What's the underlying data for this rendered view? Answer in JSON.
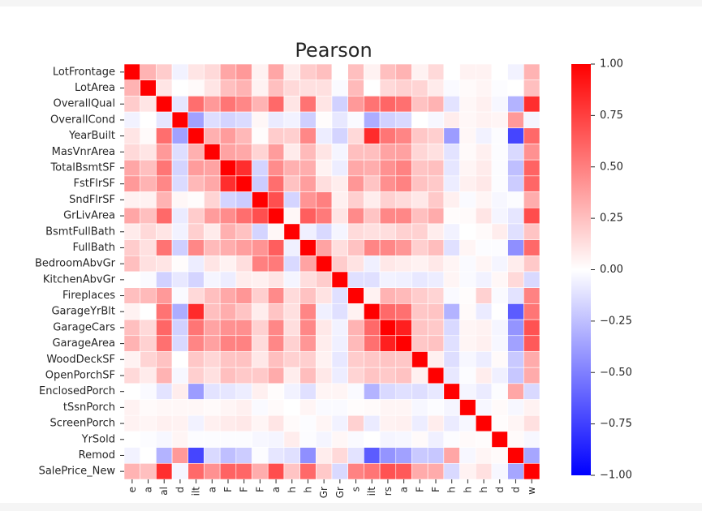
{
  "chart_data": {
    "type": "heatmap",
    "title": "Pearson",
    "labels": [
      "LotFrontage",
      "LotArea",
      "OverallQual",
      "OverallCond",
      "YearBuilt",
      "MasVnrArea",
      "TotalBsmtSF",
      "FstFlrSF",
      "SndFlrSF",
      "GrLivArea",
      "BsmtFullBath",
      "FullBath",
      "BedroomAbvGr",
      "KitchenAbvGr",
      "Fireplaces",
      "GarageYrBlt",
      "GarageCars",
      "GarageArea",
      "WoodDeckSF",
      "OpenPorchSF",
      "EnclosedPorch",
      "tSsnPorch",
      "ScreenPorch",
      "YrSold",
      "Remod",
      "SalePrice_New"
    ],
    "y_tick_labels": [
      "LotFrontage",
      "LotArea",
      "OverallQual",
      "OverallCond",
      "YearBuilt",
      "MasVnrArea",
      "TotalBsmtSF",
      "FstFlrSF",
      "SndFlrSF",
      "GrLivArea",
      "BsmtFullBath",
      "FullBath",
      "BedroomAbvGr",
      "KitchenAbvGr",
      "Fireplaces",
      "GarageYrBlt",
      "GarageCars",
      "GarageArea",
      "WoodDeckSF",
      "OpenPorchSF",
      "EnclosedPorch",
      "tSsnPorch",
      "ScreenPorch",
      "YrSold",
      "Remod",
      "SalePrice_New"
    ],
    "x_tick_labels_visible": [
      "e",
      "a",
      "al",
      "d",
      "ilt",
      "a",
      "F",
      "F",
      "F",
      "a",
      "h",
      "h",
      "Gr",
      "Gr",
      "s",
      "ilt",
      "rs",
      "a",
      "F",
      "F",
      "h",
      "h",
      "h",
      "d",
      "d",
      "w"
    ],
    "matrix": [
      [
        1.0,
        0.3,
        0.2,
        -0.05,
        0.1,
        0.15,
        0.35,
        0.4,
        0.05,
        0.35,
        0.08,
        0.2,
        0.25,
        0.0,
        0.25,
        0.05,
        0.25,
        0.3,
        0.05,
        0.15,
        0.0,
        0.05,
        0.05,
        0.0,
        -0.05,
        0.3
      ],
      [
        0.3,
        1.0,
        0.1,
        0.0,
        0.02,
        0.1,
        0.25,
        0.3,
        0.05,
        0.25,
        0.15,
        0.12,
        0.12,
        -0.02,
        0.27,
        0.0,
        0.15,
        0.18,
        0.17,
        0.08,
        -0.02,
        0.02,
        0.04,
        -0.01,
        0.0,
        0.25
      ],
      [
        0.2,
        0.1,
        1.0,
        -0.1,
        0.57,
        0.4,
        0.54,
        0.47,
        0.3,
        0.59,
        0.1,
        0.55,
        0.1,
        -0.18,
        0.4,
        0.55,
        0.6,
        0.56,
        0.24,
        0.3,
        -0.11,
        0.03,
        0.06,
        -0.03,
        -0.3,
        0.82
      ],
      [
        -0.05,
        0.0,
        -0.1,
        1.0,
        -0.37,
        -0.13,
        -0.17,
        -0.14,
        0.03,
        -0.08,
        -0.05,
        -0.19,
        0.01,
        -0.09,
        -0.02,
        -0.32,
        -0.18,
        -0.15,
        0.0,
        -0.03,
        0.07,
        0.03,
        0.05,
        0.04,
        0.4,
        -0.04
      ],
      [
        0.1,
        0.02,
        0.57,
        -0.37,
        1.0,
        0.31,
        0.39,
        0.28,
        0.01,
        0.2,
        0.19,
        0.47,
        -0.07,
        -0.17,
        0.15,
        0.83,
        0.54,
        0.48,
        0.22,
        0.19,
        -0.39,
        0.03,
        -0.05,
        -0.01,
        -0.73,
        0.59
      ],
      [
        0.15,
        0.1,
        0.4,
        -0.13,
        0.31,
        1.0,
        0.36,
        0.34,
        0.17,
        0.39,
        0.08,
        0.27,
        0.1,
        -0.04,
        0.25,
        0.25,
        0.36,
        0.37,
        0.16,
        0.12,
        -0.11,
        0.02,
        0.06,
        -0.01,
        -0.15,
        0.43
      ],
      [
        0.35,
        0.25,
        0.54,
        -0.17,
        0.39,
        0.36,
        1.0,
        0.82,
        -0.17,
        0.45,
        0.31,
        0.32,
        0.05,
        -0.07,
        0.34,
        0.32,
        0.43,
        0.49,
        0.23,
        0.25,
        -0.1,
        0.04,
        0.08,
        -0.01,
        -0.25,
        0.61
      ],
      [
        0.4,
        0.3,
        0.47,
        -0.14,
        0.28,
        0.34,
        0.82,
        1.0,
        -0.2,
        0.57,
        0.24,
        0.38,
        0.13,
        0.07,
        0.41,
        0.23,
        0.44,
        0.49,
        0.24,
        0.21,
        -0.07,
        0.06,
        0.09,
        -0.01,
        -0.2,
        0.6
      ],
      [
        0.05,
        0.05,
        0.3,
        0.03,
        0.01,
        0.17,
        -0.17,
        -0.2,
        1.0,
        0.69,
        -0.17,
        0.42,
        0.5,
        0.06,
        0.19,
        0.07,
        0.18,
        0.14,
        0.09,
        0.21,
        0.06,
        -0.02,
        0.04,
        -0.03,
        -0.01,
        0.32
      ],
      [
        0.35,
        0.25,
        0.59,
        -0.08,
        0.2,
        0.39,
        0.45,
        0.57,
        0.69,
        1.0,
        0.03,
        0.63,
        0.52,
        0.1,
        0.46,
        0.23,
        0.47,
        0.47,
        0.25,
        0.33,
        0.01,
        0.02,
        0.1,
        -0.04,
        -0.1,
        0.7
      ],
      [
        0.08,
        0.15,
        0.1,
        -0.05,
        0.19,
        0.08,
        0.31,
        0.24,
        -0.17,
        0.03,
        1.0,
        -0.06,
        -0.15,
        -0.04,
        0.14,
        0.12,
        0.13,
        0.18,
        0.18,
        0.07,
        -0.05,
        0.0,
        0.02,
        0.07,
        -0.12,
        0.23
      ],
      [
        0.2,
        0.12,
        0.55,
        -0.19,
        0.47,
        0.27,
        0.32,
        0.38,
        0.42,
        0.63,
        -0.06,
        1.0,
        0.36,
        0.13,
        0.24,
        0.48,
        0.47,
        0.41,
        0.19,
        0.26,
        -0.12,
        0.04,
        -0.01,
        -0.01,
        -0.44,
        0.59
      ],
      [
        0.25,
        0.12,
        0.1,
        0.01,
        -0.07,
        0.1,
        0.05,
        0.13,
        0.5,
        0.52,
        -0.15,
        0.36,
        1.0,
        0.2,
        0.11,
        -0.06,
        0.09,
        0.07,
        0.05,
        0.09,
        0.04,
        -0.02,
        0.04,
        -0.04,
        0.07,
        0.21
      ],
      [
        0.0,
        -0.02,
        -0.18,
        -0.09,
        -0.17,
        -0.04,
        -0.07,
        0.07,
        0.06,
        0.1,
        -0.04,
        0.13,
        0.2,
        1.0,
        -0.12,
        -0.12,
        -0.05,
        -0.06,
        -0.09,
        -0.07,
        0.04,
        -0.02,
        -0.05,
        0.03,
        0.15,
        -0.15
      ],
      [
        0.25,
        0.27,
        0.4,
        -0.02,
        0.15,
        0.25,
        0.34,
        0.41,
        0.19,
        0.46,
        0.14,
        0.24,
        0.11,
        -0.12,
        1.0,
        0.05,
        0.3,
        0.27,
        0.2,
        0.17,
        -0.02,
        0.01,
        0.18,
        -0.02,
        -0.11,
        0.49
      ],
      [
        0.05,
        0.0,
        0.55,
        -0.32,
        0.83,
        0.25,
        0.32,
        0.23,
        0.07,
        0.23,
        0.12,
        0.48,
        -0.06,
        -0.12,
        0.05,
        1.0,
        0.59,
        0.56,
        0.22,
        0.23,
        -0.3,
        0.02,
        -0.08,
        0.0,
        -0.64,
        0.54
      ],
      [
        0.25,
        0.15,
        0.6,
        -0.18,
        0.54,
        0.36,
        0.43,
        0.44,
        0.18,
        0.47,
        0.13,
        0.47,
        0.09,
        -0.05,
        0.3,
        0.59,
        1.0,
        0.88,
        0.23,
        0.21,
        -0.15,
        0.04,
        0.05,
        -0.04,
        -0.42,
        0.68
      ],
      [
        0.3,
        0.18,
        0.56,
        -0.15,
        0.48,
        0.37,
        0.49,
        0.49,
        0.14,
        0.47,
        0.18,
        0.41,
        0.07,
        -0.06,
        0.27,
        0.56,
        0.88,
        1.0,
        0.22,
        0.24,
        -0.12,
        0.04,
        0.06,
        -0.03,
        -0.37,
        0.65
      ],
      [
        0.05,
        0.17,
        0.24,
        0.0,
        0.22,
        0.16,
        0.23,
        0.24,
        0.09,
        0.25,
        0.18,
        0.19,
        0.05,
        -0.09,
        0.2,
        0.22,
        0.23,
        0.22,
        1.0,
        0.06,
        -0.13,
        -0.03,
        -0.07,
        0.02,
        -0.21,
        0.33
      ],
      [
        0.15,
        0.08,
        0.3,
        -0.03,
        0.19,
        0.12,
        0.25,
        0.21,
        0.21,
        0.33,
        0.07,
        0.26,
        0.09,
        -0.07,
        0.17,
        0.23,
        0.21,
        0.24,
        0.06,
        1.0,
        -0.09,
        -0.01,
        0.07,
        -0.06,
        -0.22,
        0.33
      ],
      [
        0.0,
        -0.02,
        -0.11,
        0.07,
        -0.39,
        -0.11,
        -0.1,
        -0.07,
        0.06,
        0.01,
        -0.05,
        -0.12,
        0.04,
        0.04,
        -0.02,
        -0.3,
        -0.15,
        -0.12,
        -0.13,
        -0.09,
        1.0,
        -0.04,
        -0.08,
        -0.01,
        0.35,
        -0.15
      ],
      [
        0.05,
        0.02,
        0.03,
        0.03,
        0.03,
        0.02,
        0.04,
        0.06,
        -0.02,
        0.02,
        0.0,
        0.04,
        -0.02,
        -0.02,
        0.01,
        0.02,
        0.04,
        0.04,
        -0.03,
        -0.01,
        -0.04,
        1.0,
        -0.03,
        0.02,
        -0.03,
        0.05
      ],
      [
        0.05,
        0.04,
        0.06,
        0.05,
        -0.05,
        0.06,
        0.08,
        0.09,
        0.04,
        0.1,
        0.02,
        -0.01,
        0.04,
        -0.05,
        0.18,
        -0.08,
        0.05,
        0.06,
        -0.07,
        0.07,
        -0.08,
        -0.03,
        1.0,
        0.01,
        0.04,
        0.12
      ],
      [
        0.0,
        -0.01,
        -0.03,
        0.04,
        -0.01,
        -0.01,
        -0.01,
        -0.01,
        -0.03,
        -0.04,
        0.07,
        -0.01,
        -0.04,
        0.03,
        -0.02,
        0.0,
        -0.04,
        -0.03,
        0.02,
        -0.06,
        -0.01,
        0.02,
        0.01,
        1.0,
        0.02,
        -0.03
      ],
      [
        -0.05,
        0.0,
        -0.3,
        0.4,
        -0.73,
        -0.15,
        -0.25,
        -0.2,
        -0.01,
        -0.1,
        -0.12,
        -0.44,
        0.07,
        0.15,
        -0.11,
        -0.64,
        -0.42,
        -0.37,
        -0.21,
        -0.22,
        0.35,
        -0.03,
        0.04,
        0.02,
        1.0,
        -0.35
      ],
      [
        0.3,
        0.25,
        0.82,
        -0.04,
        0.59,
        0.43,
        0.61,
        0.6,
        0.32,
        0.7,
        0.23,
        0.59,
        0.21,
        -0.15,
        0.49,
        0.54,
        0.68,
        0.65,
        0.33,
        0.33,
        -0.15,
        0.05,
        0.12,
        -0.03,
        -0.35,
        1.0
      ]
    ],
    "colormap": "bwr",
    "vmin": -1.0,
    "vmax": 1.0,
    "colorbar_ticks": [
      "1.00",
      "0.75",
      "0.50",
      "0.25",
      "0.00",
      "−0.25",
      "−0.50",
      "−0.75",
      "−1.00"
    ],
    "colorbar_tick_values": [
      1.0,
      0.75,
      0.5,
      0.25,
      0.0,
      -0.25,
      -0.5,
      -0.75,
      -1.0
    ],
    "colors": {
      "low": "#0000ff",
      "mid": "#ffffff",
      "high": "#ff0000"
    }
  }
}
